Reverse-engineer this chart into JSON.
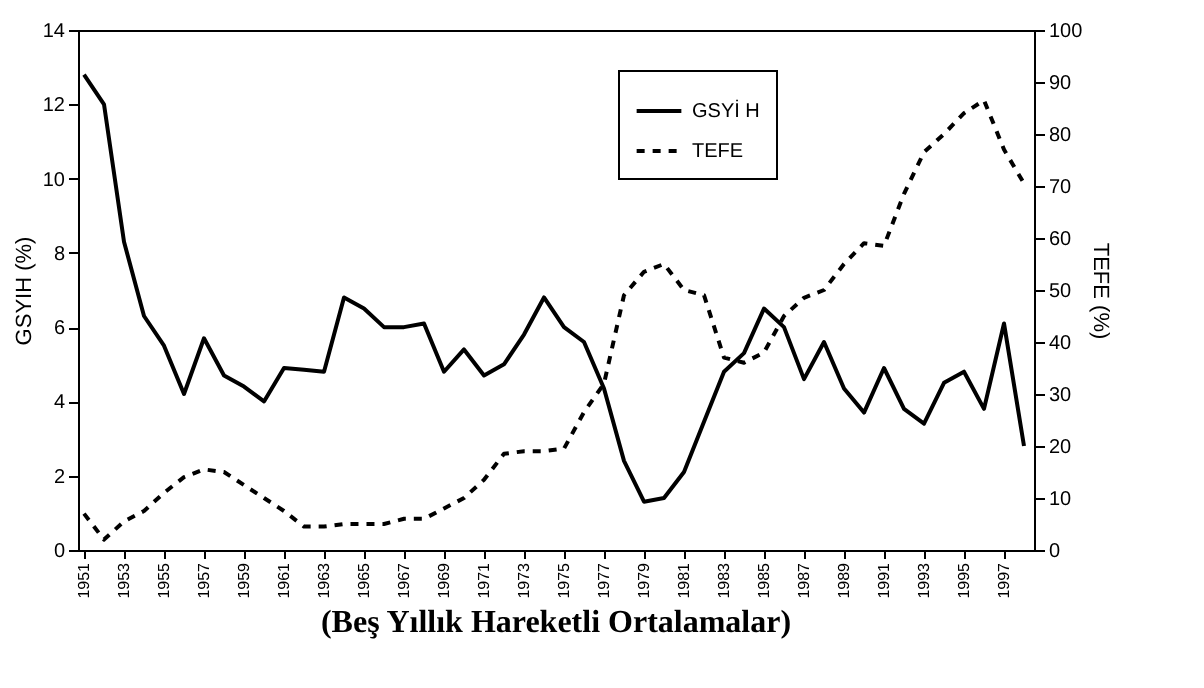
{
  "chart_data": {
    "type": "line",
    "xlabel": "(Beş Yıllık Hareketli Ortalamalar)",
    "ylabel": "GSYIH (%)",
    "y2label": "TEFE (%)",
    "x": [
      1951,
      1952,
      1953,
      1954,
      1955,
      1956,
      1957,
      1958,
      1959,
      1960,
      1961,
      1962,
      1963,
      1964,
      1965,
      1966,
      1967,
      1968,
      1969,
      1970,
      1971,
      1972,
      1973,
      1974,
      1975,
      1976,
      1977,
      1978,
      1979,
      1980,
      1981,
      1982,
      1983,
      1984,
      1985,
      1986,
      1987,
      1988,
      1989,
      1990,
      1991,
      1992,
      1993,
      1994,
      1995,
      1996,
      1997,
      1998
    ],
    "series": [
      {
        "name": "GSYİ H",
        "color": "#000000",
        "line_style": "solid",
        "axis": "y",
        "values": [
          12.8,
          12.0,
          8.3,
          6.3,
          5.5,
          4.2,
          5.7,
          4.7,
          4.4,
          4.0,
          4.9,
          4.85,
          4.8,
          6.8,
          6.5,
          6.0,
          6.0,
          6.1,
          4.8,
          5.4,
          4.7,
          5.0,
          5.8,
          6.8,
          6.0,
          5.6,
          4.35,
          2.4,
          1.3,
          1.4,
          2.1,
          3.45,
          4.8,
          5.3,
          6.5,
          6.0,
          4.6,
          5.6,
          4.35,
          3.7,
          4.9,
          3.8,
          3.4,
          4.5,
          4.8,
          3.8,
          6.1,
          2.8
        ]
      },
      {
        "name": "TEFE",
        "color": "#000000",
        "line_style": "dashed",
        "axis": "y2",
        "values": [
          7,
          2,
          5.5,
          7.5,
          11,
          14,
          15.5,
          15,
          12.5,
          10,
          7.5,
          4.5,
          4.5,
          5,
          5,
          5,
          6,
          6,
          8,
          10,
          13.5,
          18.5,
          19,
          19,
          19.5,
          26.5,
          32,
          49,
          53.5,
          55,
          50,
          49,
          37,
          36,
          38,
          45,
          48.5,
          50,
          55,
          59,
          58.5,
          68.5,
          76.5,
          80,
          84,
          86.5,
          77,
          70.5
        ]
      }
    ],
    "xlim": [
      1950.7,
      1998.5
    ],
    "xticks": [
      1951,
      1953,
      1955,
      1957,
      1959,
      1961,
      1963,
      1965,
      1967,
      1969,
      1971,
      1973,
      1975,
      1977,
      1979,
      1981,
      1983,
      1985,
      1987,
      1989,
      1991,
      1993,
      1995,
      1997
    ],
    "ylim": [
      0,
      14
    ],
    "yticks": [
      0,
      2,
      4,
      6,
      8,
      10,
      12,
      14
    ],
    "y2lim": [
      0,
      100
    ],
    "y2ticks": [
      0,
      10,
      20,
      30,
      40,
      50,
      60,
      70,
      80,
      90,
      100
    ],
    "grid": false,
    "legend": "top right",
    "marker": "none"
  }
}
